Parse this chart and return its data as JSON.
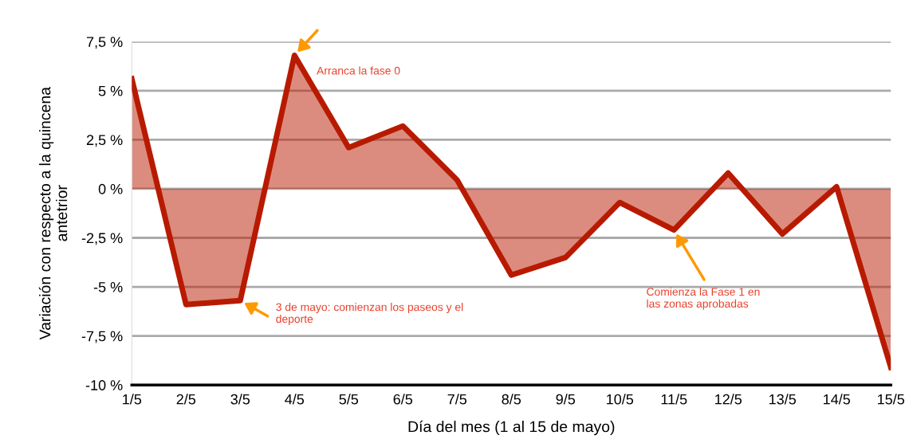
{
  "chart_data": {
    "type": "area",
    "xlabel": "Día del mes (1 al 15 de mayo)",
    "ylabel": "Variación con respecto a la quincena\nantetrior",
    "categories": [
      "1/5",
      "2/5",
      "3/5",
      "4/5",
      "5/5",
      "6/5",
      "7/5",
      "8/5",
      "9/5",
      "10/5",
      "11/5",
      "12/5",
      "13/5",
      "14/5",
      "15/5"
    ],
    "series": [
      {
        "color": "#b81a00",
        "values": [
          5.6,
          -5.9,
          -5.7,
          6.8,
          2.1,
          3.2,
          0.45,
          -4.4,
          -3.5,
          -0.7,
          -2.1,
          0.8,
          -2.3,
          0.1,
          -9.1
        ]
      }
    ],
    "ylim": [
      -10,
      7.5
    ],
    "yticks": [
      {
        "value": -10,
        "label": "-10 %"
      },
      {
        "value": -7.5,
        "label": "-7,5 %"
      },
      {
        "value": -5,
        "label": "-5 %"
      },
      {
        "value": -2.5,
        "label": "-2,5 %"
      },
      {
        "value": 0,
        "label": "0 %"
      },
      {
        "value": 2.5,
        "label": "2,5 %"
      },
      {
        "value": 5,
        "label": "5 %"
      },
      {
        "value": 7.5,
        "label": "7,5 %"
      }
    ],
    "grid": "y",
    "legend": false,
    "annotations": [
      {
        "text": "Arranca la fase 0",
        "x": "4/5",
        "y": 6.8
      },
      {
        "text": "3 de mayo: comienzan los paseos y el\ndeporte",
        "x": "3/5",
        "y": -5.7
      },
      {
        "text": "Comienza la Fase 1 en\nlas zonas aprobadas",
        "x": "11/5",
        "y": -2.1
      }
    ]
  }
}
